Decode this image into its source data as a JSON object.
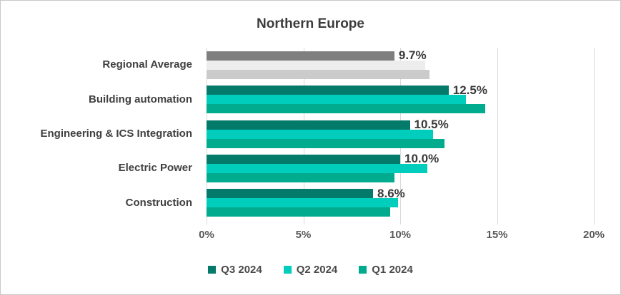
{
  "chart_data": {
    "type": "bar",
    "orientation": "horizontal",
    "title": "Northern Europe",
    "categories": [
      "Regional Average",
      "Building automation",
      "Engineering & ICS Integration",
      "Electric Power",
      "Construction"
    ],
    "series": [
      {
        "name": "Q3 2024",
        "color": "#047a6a",
        "regional_average_color": "#7f7f7f",
        "values": [
          9.7,
          12.5,
          10.5,
          10.0,
          8.6
        ],
        "data_labels": [
          "9.7%",
          "12.5%",
          "10.5%",
          "10.0%",
          "8.6%"
        ]
      },
      {
        "name": "Q2 2024",
        "color": "#00cdbc",
        "regional_average_color": "#ededed",
        "values": [
          11.3,
          13.4,
          11.7,
          11.4,
          9.9
        ]
      },
      {
        "name": "Q1 2024",
        "color": "#00ab8e",
        "regional_average_color": "#cbcbcb",
        "values": [
          11.5,
          14.4,
          12.3,
          9.7,
          9.5
        ]
      }
    ],
    "x_axis": {
      "min": 0,
      "max": 20,
      "tick_labels": [
        "0%",
        "5%",
        "10%",
        "15%",
        "20%"
      ],
      "grid": true
    },
    "legend": {
      "position": "bottom"
    },
    "colors": {
      "gridline": "#d9d9d9",
      "axis_text": "#595959",
      "category_text": "#3f3f3f",
      "data_label_text": "#3a3a3a",
      "title_text": "#3b3b3b"
    }
  }
}
